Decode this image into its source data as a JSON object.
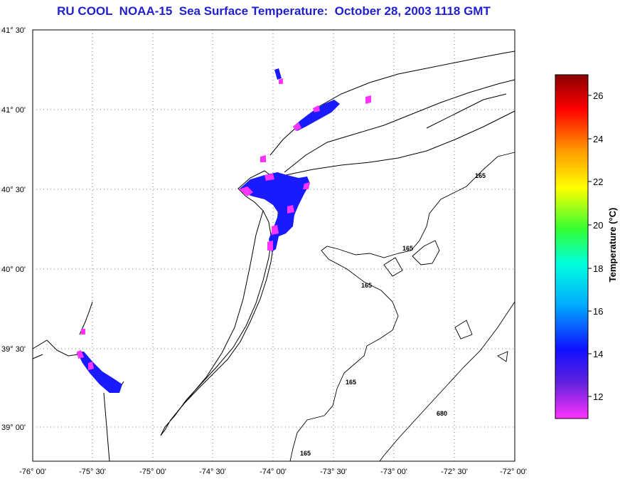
{
  "title": "RU COOL  NOAA-15  Sea Surface Temperature:  October 28, 2003 1118 GMT",
  "lat_labels": [
    "41° 30'",
    "41° 00'",
    "40° 30'",
    "40° 00'",
    "39° 30'",
    "39° 00'"
  ],
  "lon_labels": [
    "-76° 00'",
    "-75° 30'",
    "-75° 00'",
    "-74° 30'",
    "-74° 00'",
    "-73° 30'",
    "-73° 00'",
    "-72° 30'",
    "-72° 00'"
  ],
  "colorbar": {
    "ticks": [
      "26",
      "24",
      "22",
      "20",
      "18",
      "16",
      "14",
      "12"
    ],
    "label": "Temperature (°C)"
  },
  "contour_labels": {
    "c1": "165",
    "c2": "165",
    "c3": "165",
    "c4": "165",
    "c5": "680",
    "c6": "165"
  }
}
